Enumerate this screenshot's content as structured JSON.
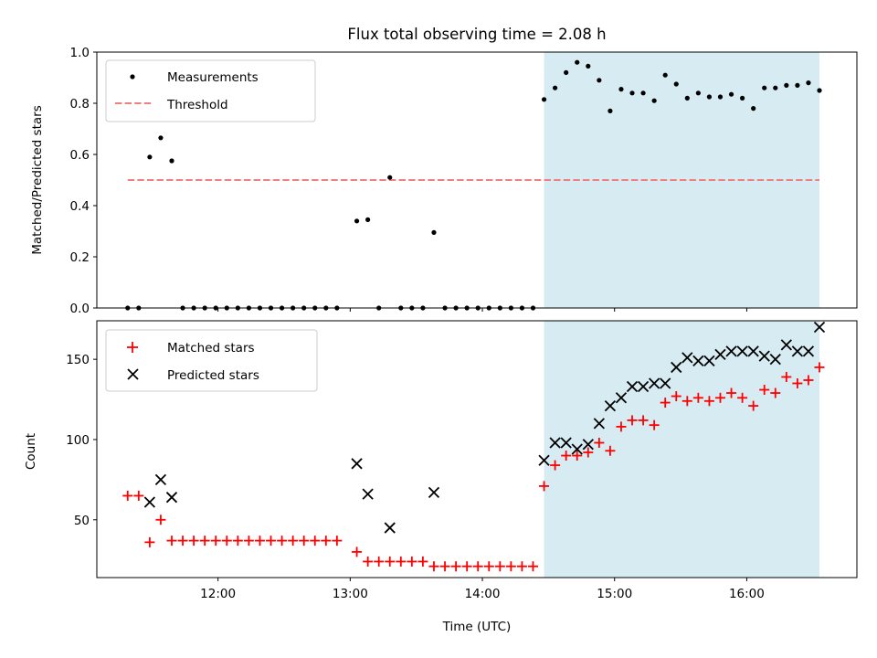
{
  "chart_data": [
    {
      "type": "scatter",
      "title": "Flux total observing time = 2.08 h",
      "xlabel": "",
      "ylabel": "Matched/Predicted stars",
      "ylim": [
        0.0,
        1.0
      ],
      "yticks": [
        "0.0",
        "0.2",
        "0.4",
        "0.6",
        "0.8",
        "1.0"
      ],
      "xlim": [
        "11:05",
        "16:50"
      ],
      "grid": false,
      "legend_position": "top-left",
      "shaded_interval": {
        "x": [
          "14:28",
          "16:33"
        ],
        "color": "#add8e6"
      },
      "series": [
        {
          "name": "Measurements",
          "marker": "dot",
          "color": "#000000",
          "points": [
            [
              "11:19",
              0.0
            ],
            [
              "11:24",
              0.0
            ],
            [
              "11:29",
              0.59
            ],
            [
              "11:34",
              0.665
            ],
            [
              "11:39",
              0.575
            ],
            [
              "11:44",
              0.0
            ],
            [
              "11:49",
              0.0
            ],
            [
              "11:54",
              0.0
            ],
            [
              "11:59",
              0.0
            ],
            [
              "12:04",
              0.0
            ],
            [
              "12:09",
              0.0
            ],
            [
              "12:14",
              0.0
            ],
            [
              "12:19",
              0.0
            ],
            [
              "12:24",
              0.0
            ],
            [
              "12:29",
              0.0
            ],
            [
              "12:34",
              0.0
            ],
            [
              "12:39",
              0.0
            ],
            [
              "12:44",
              0.0
            ],
            [
              "12:49",
              0.0
            ],
            [
              "12:54",
              0.0
            ],
            [
              "13:03",
              0.34
            ],
            [
              "13:08",
              0.345
            ],
            [
              "13:13",
              0.0
            ],
            [
              "13:18",
              0.51
            ],
            [
              "13:23",
              0.0
            ],
            [
              "13:28",
              0.0
            ],
            [
              "13:33",
              0.0
            ],
            [
              "13:38",
              0.295
            ],
            [
              "13:43",
              0.0
            ],
            [
              "13:48",
              0.0
            ],
            [
              "13:53",
              0.0
            ],
            [
              "13:58",
              0.0
            ],
            [
              "14:03",
              0.0
            ],
            [
              "14:08",
              0.0
            ],
            [
              "14:13",
              0.0
            ],
            [
              "14:18",
              0.0
            ],
            [
              "14:23",
              0.0
            ],
            [
              "14:28",
              0.815
            ],
            [
              "14:33",
              0.86
            ],
            [
              "14:38",
              0.92
            ],
            [
              "14:43",
              0.96
            ],
            [
              "14:48",
              0.945
            ],
            [
              "14:53",
              0.89
            ],
            [
              "14:58",
              0.77
            ],
            [
              "15:03",
              0.855
            ],
            [
              "15:08",
              0.84
            ],
            [
              "15:13",
              0.84
            ],
            [
              "15:18",
              0.81
            ],
            [
              "15:23",
              0.91
            ],
            [
              "15:28",
              0.875
            ],
            [
              "15:33",
              0.82
            ],
            [
              "15:38",
              0.84
            ],
            [
              "15:43",
              0.825
            ],
            [
              "15:48",
              0.825
            ],
            [
              "15:53",
              0.835
            ],
            [
              "15:58",
              0.82
            ],
            [
              "16:03",
              0.78
            ],
            [
              "16:08",
              0.86
            ],
            [
              "16:13",
              0.86
            ],
            [
              "16:18",
              0.87
            ],
            [
              "16:23",
              0.87
            ],
            [
              "16:28",
              0.88
            ],
            [
              "16:33",
              0.85
            ]
          ]
        },
        {
          "name": "Threshold",
          "marker": "dashed-line",
          "color": "#f08080",
          "points": [
            [
              "11:19",
              0.5
            ],
            [
              "16:33",
              0.5
            ]
          ]
        }
      ]
    },
    {
      "type": "scatter",
      "title": "",
      "xlabel": "Time (UTC)",
      "ylabel": "Count",
      "ylim": [
        14,
        174
      ],
      "yticks": [
        "50",
        "100",
        "150"
      ],
      "xticks": [
        "12:00",
        "13:00",
        "14:00",
        "15:00",
        "16:00"
      ],
      "xlim": [
        "11:05",
        "16:50"
      ],
      "grid": false,
      "legend_position": "top-left",
      "shaded_interval": {
        "x": [
          "14:28",
          "16:33"
        ],
        "color": "#add8e6"
      },
      "series": [
        {
          "name": "Matched stars",
          "marker": "plus",
          "color": "#ff0000",
          "points": [
            [
              "11:19",
              65
            ],
            [
              "11:24",
              65
            ],
            [
              "11:29",
              36
            ],
            [
              "11:34",
              50
            ],
            [
              "11:39",
              37
            ],
            [
              "11:44",
              37
            ],
            [
              "11:49",
              37
            ],
            [
              "11:54",
              37
            ],
            [
              "11:59",
              37
            ],
            [
              "12:04",
              37
            ],
            [
              "12:09",
              37
            ],
            [
              "12:14",
              37
            ],
            [
              "12:19",
              37
            ],
            [
              "12:24",
              37
            ],
            [
              "12:29",
              37
            ],
            [
              "12:34",
              37
            ],
            [
              "12:39",
              37
            ],
            [
              "12:44",
              37
            ],
            [
              "12:49",
              37
            ],
            [
              "12:54",
              37
            ],
            [
              "13:03",
              30
            ],
            [
              "13:08",
              24
            ],
            [
              "13:13",
              24
            ],
            [
              "13:18",
              24
            ],
            [
              "13:23",
              24
            ],
            [
              "13:28",
              24
            ],
            [
              "13:33",
              24
            ],
            [
              "13:38",
              21
            ],
            [
              "13:43",
              21
            ],
            [
              "13:48",
              21
            ],
            [
              "13:53",
              21
            ],
            [
              "13:58",
              21
            ],
            [
              "14:03",
              21
            ],
            [
              "14:08",
              21
            ],
            [
              "14:13",
              21
            ],
            [
              "14:18",
              21
            ],
            [
              "14:23",
              21
            ],
            [
              "14:28",
              71
            ],
            [
              "14:33",
              84
            ],
            [
              "14:38",
              90
            ],
            [
              "14:43",
              90
            ],
            [
              "14:48",
              92
            ],
            [
              "14:53",
              98
            ],
            [
              "14:58",
              93
            ],
            [
              "15:03",
              108
            ],
            [
              "15:08",
              112
            ],
            [
              "15:13",
              112
            ],
            [
              "15:18",
              109
            ],
            [
              "15:23",
              123
            ],
            [
              "15:28",
              127
            ],
            [
              "15:33",
              124
            ],
            [
              "15:38",
              126
            ],
            [
              "15:43",
              124
            ],
            [
              "15:48",
              126
            ],
            [
              "15:53",
              129
            ],
            [
              "15:58",
              126
            ],
            [
              "16:03",
              121
            ],
            [
              "16:08",
              131
            ],
            [
              "16:13",
              129
            ],
            [
              "16:18",
              139
            ],
            [
              "16:23",
              135
            ],
            [
              "16:28",
              137
            ],
            [
              "16:33",
              145
            ]
          ]
        },
        {
          "name": "Predicted stars",
          "marker": "x",
          "color": "#000000",
          "points": [
            [
              "11:29",
              61
            ],
            [
              "11:34",
              75
            ],
            [
              "11:39",
              64
            ],
            [
              "13:03",
              85
            ],
            [
              "13:08",
              66
            ],
            [
              "13:18",
              45
            ],
            [
              "13:38",
              67
            ],
            [
              "14:28",
              87
            ],
            [
              "14:33",
              98
            ],
            [
              "14:38",
              98
            ],
            [
              "14:43",
              94
            ],
            [
              "14:48",
              97
            ],
            [
              "14:53",
              110
            ],
            [
              "14:58",
              121
            ],
            [
              "15:03",
              126
            ],
            [
              "15:08",
              133
            ],
            [
              "15:13",
              133
            ],
            [
              "15:18",
              135
            ],
            [
              "15:23",
              135
            ],
            [
              "15:28",
              145
            ],
            [
              "15:33",
              151
            ],
            [
              "15:38",
              149
            ],
            [
              "15:43",
              149
            ],
            [
              "15:48",
              153
            ],
            [
              "15:53",
              155
            ],
            [
              "15:58",
              155
            ],
            [
              "16:03",
              155
            ],
            [
              "16:08",
              152
            ],
            [
              "16:13",
              150
            ],
            [
              "16:18",
              159
            ],
            [
              "16:23",
              155
            ],
            [
              "16:28",
              155
            ],
            [
              "16:33",
              170
            ]
          ]
        }
      ]
    }
  ]
}
